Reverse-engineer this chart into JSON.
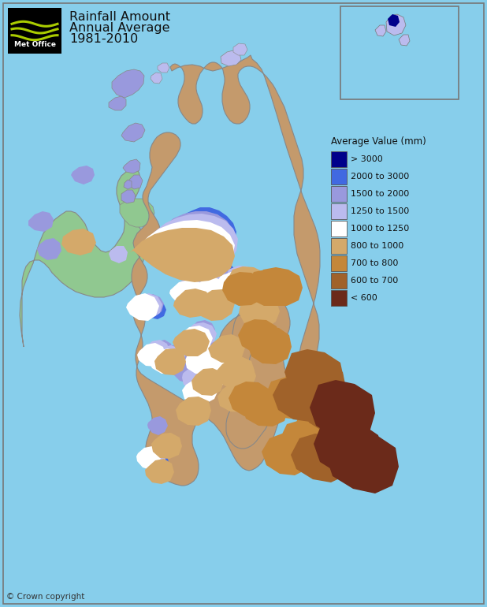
{
  "title_lines": [
    "Rainfall Amount",
    "Annual Average",
    "1981-2010"
  ],
  "background_color": "#87CEEB",
  "legend_title": "Average Value (mm)",
  "legend_colors": [
    "#00008B",
    "#4169E1",
    "#9999DD",
    "#BBBBEE",
    "#FFFFFF",
    "#D4A96A",
    "#C4873A",
    "#A0622A",
    "#6B2A1A"
  ],
  "legend_labels": [
    "> 3000",
    "2000 to 3000",
    "1500 to 2000",
    "1250 to 1500",
    "1000 to 1250",
    "800 to 1000",
    "700 to 800",
    "600 to 700",
    "< 600"
  ],
  "copyright_text": "© Crown copyright",
  "ireland_color": "#90C890",
  "border_color": "#777777",
  "logo_bg": "#000000",
  "logo_stripe_color": "#AACC00",
  "logo_text": "Met Office",
  "logo_text_color": "#FFFFFF",
  "gb_base_color": "#C49A6C",
  "sea_color": "#87CEEB"
}
